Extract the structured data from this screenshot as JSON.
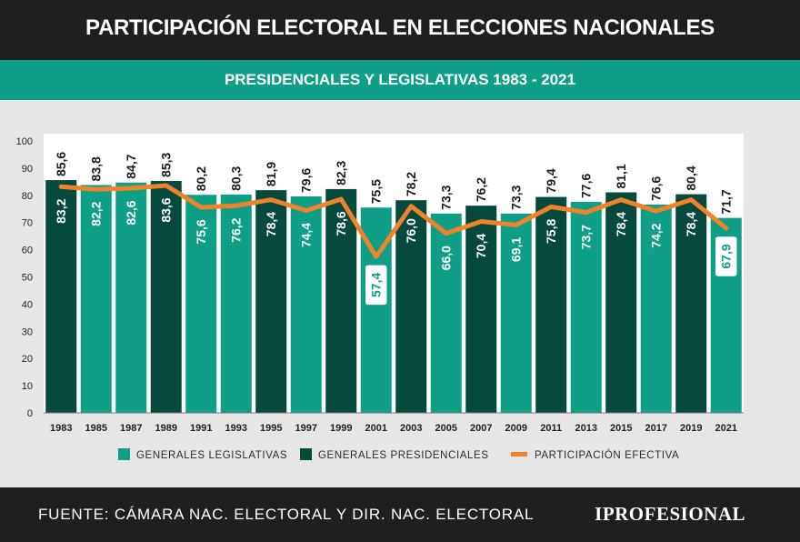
{
  "header": {
    "title": "PARTICIPACIÓN ELECTORAL EN ELECCIONES NACIONALES",
    "subtitle": "PRESIDENCIALES Y LEGISLATIVAS 1983 - 2021"
  },
  "footer": {
    "source": "FUENTE: CÁMARA NAC. ELECTORAL Y DIR. NAC. ELECTORAL",
    "brand": "IPROFESIONAL"
  },
  "colors": {
    "legislativas": "#0f9e86",
    "presidenciales": "#064a3d",
    "participacion": "#f0822a"
  },
  "chart_data": {
    "type": "bar",
    "ylim": [
      0,
      100
    ],
    "yticks": [
      "0",
      "10",
      "20",
      "30",
      "40",
      "50",
      "60",
      "70",
      "80",
      "90",
      "100"
    ],
    "categories": [
      "1983",
      "1985",
      "1987",
      "1989",
      "1991",
      "1993",
      "1995",
      "1997",
      "1999",
      "2001",
      "2003",
      "2005",
      "2007",
      "2009",
      "2011",
      "2013",
      "2015",
      "2017",
      "2019",
      "2021"
    ],
    "election_type": [
      "presidenciales",
      "legislativas",
      "legislativas",
      "presidenciales",
      "legislativas",
      "legislativas",
      "presidenciales",
      "legislativas",
      "presidenciales",
      "legislativas",
      "presidenciales",
      "legislativas",
      "presidenciales",
      "legislativas",
      "presidenciales",
      "legislativas",
      "presidenciales",
      "legislativas",
      "presidenciales",
      "legislativas"
    ],
    "series": [
      {
        "name": "PARTICIPACIÓN",
        "values": [
          85.6,
          83.8,
          84.7,
          85.3,
          80.2,
          80.3,
          81.9,
          79.6,
          82.3,
          75.5,
          78.2,
          73.3,
          76.2,
          73.3,
          79.4,
          77.6,
          81.1,
          76.6,
          80.4,
          71.7
        ],
        "labels": [
          "85,6",
          "83,8",
          "84,7",
          "85,3",
          "80,2",
          "80,3",
          "81,9",
          "79,6",
          "82,3",
          "75,5",
          "78,2",
          "73,3",
          "76,2",
          "73,3",
          "79,4",
          "77,6",
          "81,1",
          "76,6",
          "80,4",
          "71,7"
        ]
      },
      {
        "name": "PARTICIPACIÓN EFECTIVA",
        "values": [
          83.2,
          82.2,
          82.6,
          83.6,
          75.6,
          76.2,
          78.4,
          74.4,
          78.6,
          57.4,
          76.0,
          66.0,
          70.4,
          69.1,
          75.8,
          73.7,
          78.4,
          74.2,
          78.4,
          67.9
        ],
        "labels": [
          "83,2",
          "82,2",
          "82,6",
          "83,6",
          "75,6",
          "76,2",
          "78,4",
          "74,4",
          "78,6",
          "57,4",
          "76,0",
          "66,0",
          "70,4",
          "69,1",
          "75,8",
          "73,7",
          "78,4",
          "74,2",
          "78,4",
          "67,9"
        ],
        "boxed": [
          "2001",
          "2021"
        ]
      }
    ],
    "legend": [
      {
        "label": "GENERALES LEGISLATIVAS",
        "color": "#0f9e86",
        "kind": "box"
      },
      {
        "label": "GENERALES PRESIDENCIALES",
        "color": "#064a3d",
        "kind": "box"
      },
      {
        "label": "PARTICIPACIÓN EFECTIVA",
        "color": "#f0822a",
        "kind": "line"
      }
    ],
    "legend_position": "bottom"
  }
}
